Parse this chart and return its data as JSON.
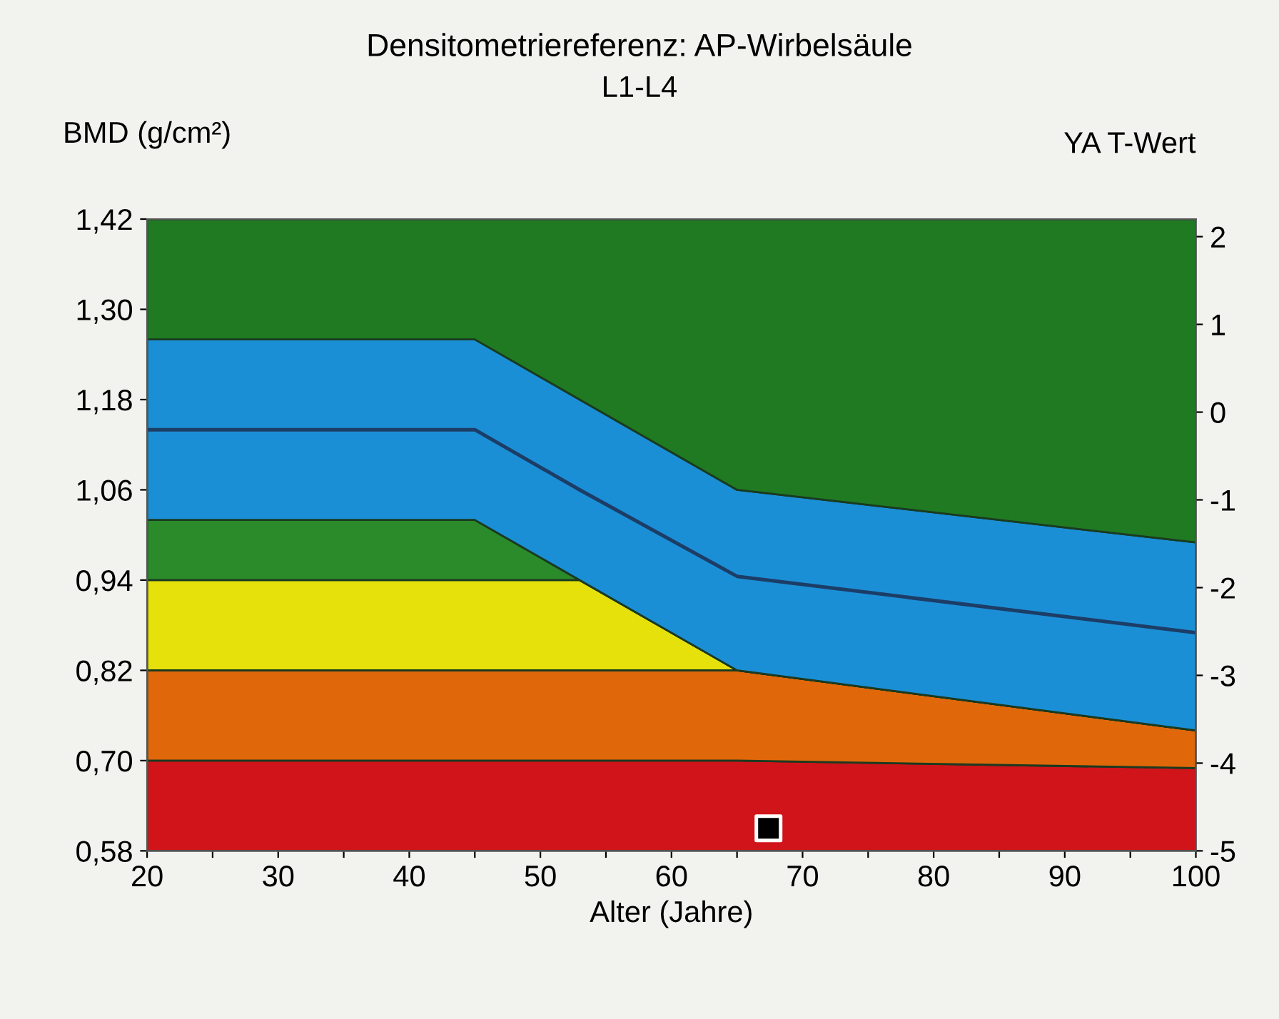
{
  "chart_data": {
    "type": "area",
    "title": "Densitometriereferenz: AP-Wirbelsäule",
    "subtitle": "L1-L4",
    "xlabel": "Alter (Jahre)",
    "ylabel": "BMD (g/cm²)",
    "y2label": "YA T-Wert",
    "x": [
      20,
      45,
      53,
      65,
      100
    ],
    "series": [
      {
        "color": "#d0141a",
        "values": [
          0.7,
          0.7,
          0.7,
          0.7,
          0.69
        ]
      },
      {
        "color": "#e0680a",
        "values": [
          0.82,
          0.82,
          0.82,
          0.82,
          0.74
        ]
      },
      {
        "color": "#e6e10a",
        "values": [
          0.94,
          0.94,
          0.94,
          0.82,
          0.74
        ]
      },
      {
        "color": "#2b8a2a",
        "values": [
          1.02,
          1.02,
          0.94,
          0.82,
          0.74
        ]
      },
      {
        "color": "#1b8fd6",
        "values": [
          1.26,
          1.26,
          1.18,
          1.06,
          0.99
        ]
      },
      {
        "color": "#1f7a22",
        "values": [
          1.42,
          1.42,
          1.42,
          1.42,
          1.42
        ]
      },
      {
        "type": "line",
        "color": "#1c3d66",
        "values": [
          1.14,
          1.14,
          1.06,
          0.945,
          0.87
        ]
      },
      {
        "type": "scatter",
        "marker": "square",
        "color": "#000000",
        "x": [
          67.4
        ],
        "values": [
          0.61
        ]
      }
    ],
    "xlim": [
      20,
      100
    ],
    "xticks": [
      20,
      {
        "value": 25,
        "label": null
      },
      30,
      {
        "value": 35,
        "label": null
      },
      40,
      {
        "value": 45,
        "label": null
      },
      50,
      {
        "value": 55,
        "label": null
      },
      60,
      {
        "value": 65,
        "label": null
      },
      70,
      {
        "value": 75,
        "label": null
      },
      80,
      {
        "value": 85,
        "label": null
      },
      90,
      {
        "value": 95,
        "label": null
      },
      100
    ],
    "ylim": [
      0.58,
      1.42
    ],
    "yticks": [
      {
        "value": 0.58,
        "label": "0,58"
      },
      {
        "value": 0.7,
        "label": "0,70"
      },
      {
        "value": 0.82,
        "label": "0,82"
      },
      {
        "value": 0.94,
        "label": "0,94"
      },
      {
        "value": 1.06,
        "label": "1,06"
      },
      {
        "value": 1.18,
        "label": "1,18"
      },
      {
        "value": 1.3,
        "label": "1,30"
      },
      {
        "value": 1.42,
        "label": "1,42"
      }
    ],
    "y2lim": [
      -5,
      2.2
    ],
    "y2ticks": [
      -5,
      -4,
      -3,
      -2,
      -1,
      0,
      1,
      2
    ],
    "grid": false,
    "legend": false
  }
}
